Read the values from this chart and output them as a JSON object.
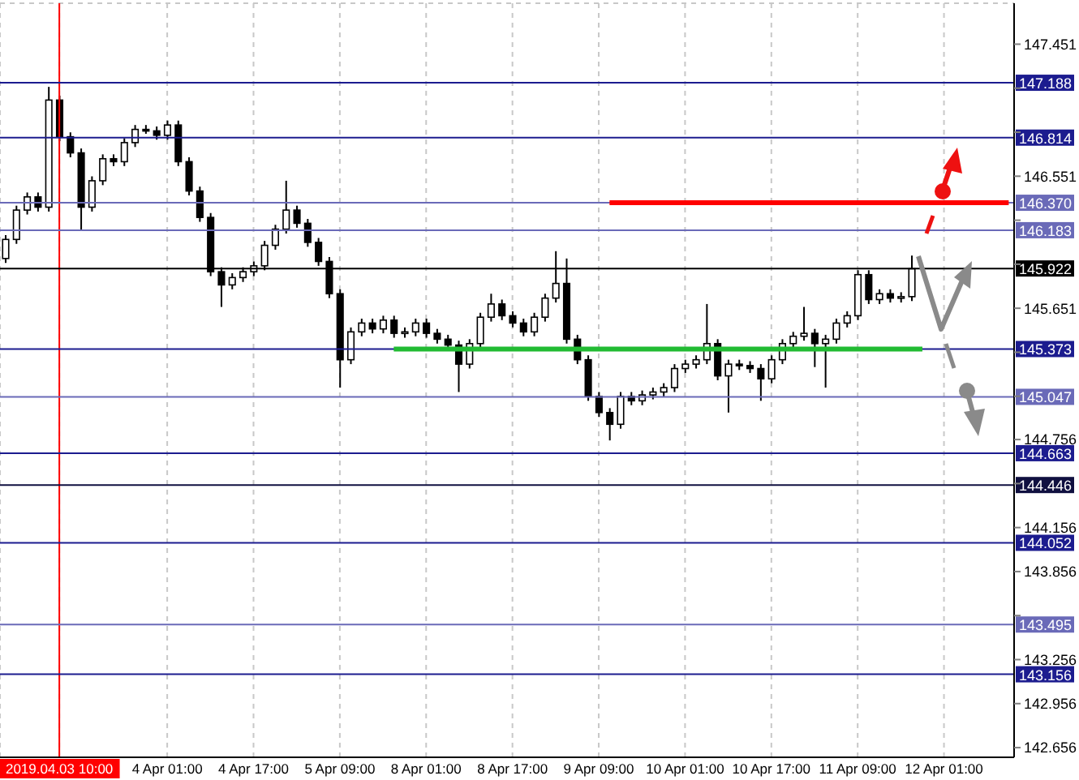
{
  "chart_data": {
    "type": "candlestick",
    "color": "#000000",
    "categories": [
      null,
      null,
      null,
      null,
      null,
      "2019.04.03 10:00",
      null,
      null,
      null,
      null,
      null,
      null,
      null,
      null,
      null,
      "4 Apr 01:00",
      null,
      null,
      null,
      null,
      null,
      null,
      null,
      "4 Apr 17:00",
      null,
      null,
      null,
      null,
      null,
      null,
      null,
      "5 Apr 09:00",
      null,
      null,
      null,
      null,
      null,
      null,
      null,
      "8 Apr 01:00",
      null,
      null,
      null,
      null,
      null,
      null,
      null,
      "8 Apr 17:00",
      null,
      null,
      null,
      null,
      null,
      null,
      null,
      "9 Apr 09:00",
      null,
      null,
      null,
      null,
      null,
      null,
      null,
      "10 Apr 01:00",
      null,
      null,
      null,
      null,
      null,
      null,
      null,
      "10 Apr 17:00",
      null,
      null,
      null,
      null,
      null,
      null,
      null,
      "11 Apr 09:00",
      null,
      null,
      null,
      null,
      null,
      null,
      null,
      "12 Apr 01:00",
      null,
      null,
      null,
      null,
      null,
      null
    ],
    "ohlc": [
      [
        145.99,
        146.15,
        145.96,
        146.12
      ],
      [
        146.12,
        146.35,
        146.09,
        146.32
      ],
      [
        146.32,
        146.44,
        146.29,
        146.41
      ],
      [
        146.41,
        146.44,
        146.31,
        146.34
      ],
      [
        146.34,
        147.16,
        146.31,
        147.07
      ],
      [
        147.07,
        147.1,
        146.79,
        146.82
      ],
      [
        146.82,
        146.85,
        146.68,
        146.71
      ],
      [
        146.71,
        146.74,
        146.18,
        146.34
      ],
      [
        146.34,
        146.55,
        146.31,
        146.52
      ],
      [
        146.52,
        146.7,
        146.49,
        146.67
      ],
      [
        146.67,
        146.7,
        146.62,
        146.65
      ],
      [
        146.65,
        146.81,
        146.62,
        146.78
      ],
      [
        146.78,
        146.9,
        146.75,
        146.87
      ],
      [
        146.87,
        146.9,
        146.84,
        146.86
      ],
      [
        146.86,
        146.89,
        146.8,
        146.83
      ],
      [
        146.83,
        146.93,
        146.8,
        146.9
      ],
      [
        146.9,
        146.93,
        146.62,
        146.65
      ],
      [
        146.65,
        146.68,
        146.42,
        146.45
      ],
      [
        146.45,
        146.48,
        146.24,
        146.27
      ],
      [
        146.27,
        146.3,
        145.87,
        145.9
      ],
      [
        145.9,
        145.93,
        145.66,
        145.81
      ],
      [
        145.81,
        145.89,
        145.78,
        145.86
      ],
      [
        145.86,
        145.93,
        145.83,
        145.9
      ],
      [
        145.9,
        145.97,
        145.87,
        145.94
      ],
      [
        145.94,
        146.11,
        145.91,
        146.08
      ],
      [
        146.08,
        146.22,
        146.05,
        146.19
      ],
      [
        146.19,
        146.52,
        146.16,
        146.32
      ],
      [
        146.32,
        146.35,
        146.2,
        146.23
      ],
      [
        146.23,
        146.26,
        146.07,
        146.1
      ],
      [
        146.1,
        146.13,
        145.94,
        145.97
      ],
      [
        145.97,
        146,
        145.72,
        145.75
      ],
      [
        145.75,
        145.78,
        145.11,
        145.3
      ],
      [
        145.3,
        145.52,
        145.27,
        145.49
      ],
      [
        145.49,
        145.58,
        145.46,
        145.55
      ],
      [
        145.55,
        145.58,
        145.48,
        145.51
      ],
      [
        145.51,
        145.6,
        145.48,
        145.57
      ],
      [
        145.57,
        145.6,
        145.45,
        145.48
      ],
      [
        145.48,
        145.52,
        145.45,
        145.49
      ],
      [
        145.49,
        145.58,
        145.46,
        145.55
      ],
      [
        145.55,
        145.58,
        145.45,
        145.48
      ],
      [
        145.48,
        145.51,
        145.41,
        145.44
      ],
      [
        145.44,
        145.47,
        145.37,
        145.4
      ],
      [
        145.4,
        145.43,
        145.08,
        145.27
      ],
      [
        145.27,
        145.44,
        145.24,
        145.41
      ],
      [
        145.41,
        145.62,
        145.38,
        145.59
      ],
      [
        145.59,
        145.75,
        145.56,
        145.68
      ],
      [
        145.68,
        145.71,
        145.57,
        145.6
      ],
      [
        145.6,
        145.63,
        145.52,
        145.55
      ],
      [
        145.55,
        145.58,
        145.46,
        145.49
      ],
      [
        145.49,
        145.62,
        145.46,
        145.59
      ],
      [
        145.59,
        145.75,
        145.56,
        145.72
      ],
      [
        145.72,
        146.04,
        145.69,
        145.82
      ],
      [
        145.82,
        145.99,
        145.41,
        145.44
      ],
      [
        145.44,
        145.47,
        145.27,
        145.3
      ],
      [
        145.3,
        145.33,
        145.02,
        145.05
      ],
      [
        145.05,
        145.08,
        144.91,
        144.94
      ],
      [
        144.94,
        144.97,
        144.75,
        144.86
      ],
      [
        144.86,
        145.08,
        144.83,
        145.05
      ],
      [
        145.05,
        145.08,
        144.99,
        145.02
      ],
      [
        145.02,
        145.09,
        144.99,
        145.06
      ],
      [
        145.06,
        145.11,
        145.03,
        145.08
      ],
      [
        145.08,
        145.14,
        145.05,
        145.11
      ],
      [
        145.11,
        145.27,
        145.08,
        145.24
      ],
      [
        145.24,
        145.3,
        145.21,
        145.27
      ],
      [
        145.27,
        145.33,
        145.24,
        145.3
      ],
      [
        145.3,
        145.68,
        145.27,
        145.41
      ],
      [
        145.41,
        145.44,
        145.16,
        145.19
      ],
      [
        145.19,
        145.3,
        144.94,
        145.27
      ],
      [
        145.27,
        145.3,
        145.23,
        145.26
      ],
      [
        145.26,
        145.29,
        145.21,
        145.24
      ],
      [
        145.24,
        145.27,
        145.02,
        145.17
      ],
      [
        145.17,
        145.33,
        145.14,
        145.3
      ],
      [
        145.3,
        145.44,
        145.27,
        145.41
      ],
      [
        145.41,
        145.49,
        145.38,
        145.46
      ],
      [
        145.46,
        145.66,
        145.43,
        145.48
      ],
      [
        145.48,
        145.51,
        145.25,
        145.41
      ],
      [
        145.41,
        145.47,
        145.11,
        145.44
      ],
      [
        145.44,
        145.58,
        145.41,
        145.55
      ],
      [
        145.55,
        145.63,
        145.52,
        145.6
      ],
      [
        145.6,
        145.91,
        145.57,
        145.88
      ],
      [
        145.88,
        145.91,
        145.68,
        145.71
      ],
      [
        145.71,
        145.78,
        145.68,
        145.75
      ],
      [
        145.75,
        145.78,
        145.69,
        145.72
      ],
      [
        145.72,
        145.76,
        145.69,
        145.73
      ],
      [
        145.73,
        146.01,
        145.7,
        145.92
      ],
      null,
      null,
      null,
      null,
      null,
      null,
      null,
      null,
      null
    ],
    "series": [
      {
        "type": "line",
        "color": "#ff0000",
        "values": [
          null,
          null,
          null,
          null,
          null,
          null,
          null,
          null,
          null,
          null,
          null,
          null,
          null,
          null,
          null,
          null,
          null,
          null,
          null,
          null,
          null,
          null,
          null,
          null,
          null,
          null,
          null,
          null,
          null,
          null,
          null,
          null,
          null,
          null,
          null,
          null,
          null,
          null,
          null,
          null,
          null,
          null,
          null,
          null,
          null,
          null,
          null,
          null,
          null,
          null,
          null,
          null,
          null,
          null,
          null,
          null,
          146.37,
          146.37,
          146.37,
          146.37,
          146.37,
          146.37,
          146.37,
          146.37,
          146.37,
          146.37,
          146.37,
          146.37,
          146.37,
          146.37,
          146.37,
          146.37,
          146.37,
          146.37,
          146.37,
          146.37,
          146.37,
          146.37,
          146.37,
          146.37,
          146.37,
          146.37,
          146.37,
          146.37,
          146.37,
          146.37,
          146.37,
          146.37,
          146.37,
          146.37,
          146.37,
          146.37,
          146.37,
          146.37
        ]
      },
      {
        "type": "line",
        "color": "#22bb33",
        "values": [
          null,
          null,
          null,
          null,
          null,
          null,
          null,
          null,
          null,
          null,
          null,
          null,
          null,
          null,
          null,
          null,
          null,
          null,
          null,
          null,
          null,
          null,
          null,
          null,
          null,
          null,
          null,
          null,
          null,
          null,
          null,
          null,
          null,
          null,
          null,
          null,
          145.373,
          145.373,
          145.373,
          145.373,
          145.373,
          145.373,
          145.373,
          145.373,
          145.373,
          145.373,
          145.373,
          145.373,
          145.373,
          145.373,
          145.373,
          145.373,
          145.373,
          145.373,
          145.373,
          145.373,
          145.373,
          145.373,
          145.373,
          145.373,
          145.373,
          145.373,
          145.373,
          145.373,
          145.373,
          145.373,
          145.373,
          145.373,
          145.373,
          145.373,
          145.373,
          145.373,
          145.373,
          145.373,
          145.373,
          145.373,
          145.373,
          145.373,
          145.373,
          145.373,
          145.373,
          145.373,
          145.373,
          145.373,
          145.373,
          145.373,
          null,
          null,
          null,
          null,
          null,
          null,
          null,
          null
        ]
      }
    ],
    "ylim": [
      142.59,
      147.73
    ],
    "yticks": [
      147.451,
      {
        "value": 147.151,
        "label": null
      },
      {
        "value": 146.851,
        "label": null
      },
      146.551,
      {
        "value": 146.251,
        "label": null
      },
      {
        "value": 145.951,
        "label": null
      },
      145.651,
      {
        "value": 145.351,
        "label": null
      },
      {
        "value": 145.051,
        "label": null
      },
      144.756,
      {
        "value": 144.456,
        "label": null
      },
      144.156,
      143.856,
      {
        "value": 143.556,
        "label": null
      },
      143.256,
      142.956,
      142.656
    ],
    "grid": true,
    "ref_lines": [
      {
        "axis": "x",
        "value": "2019.04.03 10:00",
        "color": "#ff0000"
      },
      {
        "axis": "y",
        "value": 147.188,
        "label": "147.188",
        "color": "#1c1c8f"
      },
      {
        "axis": "y",
        "value": 146.814,
        "label": "146.814",
        "color": "#1c1c8f"
      },
      {
        "axis": "y",
        "value": 146.37,
        "label": "146.370",
        "color": "#6a6ab8"
      },
      {
        "axis": "y",
        "value": 146.183,
        "label": "146.183",
        "color": "#6a6ab8"
      },
      {
        "axis": "y",
        "value": 145.922,
        "label": "145.922",
        "color": "#000000"
      },
      {
        "axis": "y",
        "value": 145.373,
        "label": "145.373",
        "color": "#1c1c8f"
      },
      {
        "axis": "y",
        "value": 145.047,
        "label": "145.047",
        "color": "#6a6ab8"
      },
      {
        "axis": "y",
        "value": 144.663,
        "label": "144.663",
        "color": "#1c1c8f"
      },
      {
        "axis": "y",
        "value": 144.446,
        "label": "144.446",
        "color": "#101040"
      },
      {
        "axis": "y",
        "value": 144.052,
        "label": "144.052",
        "color": "#1c1c8f"
      },
      {
        "axis": "y",
        "value": 143.495,
        "label": "143.495",
        "color": "#6a6ab8"
      },
      {
        "axis": "y",
        "value": 143.156,
        "label": "143.156",
        "color": "#1c1c8f"
      }
    ]
  }
}
